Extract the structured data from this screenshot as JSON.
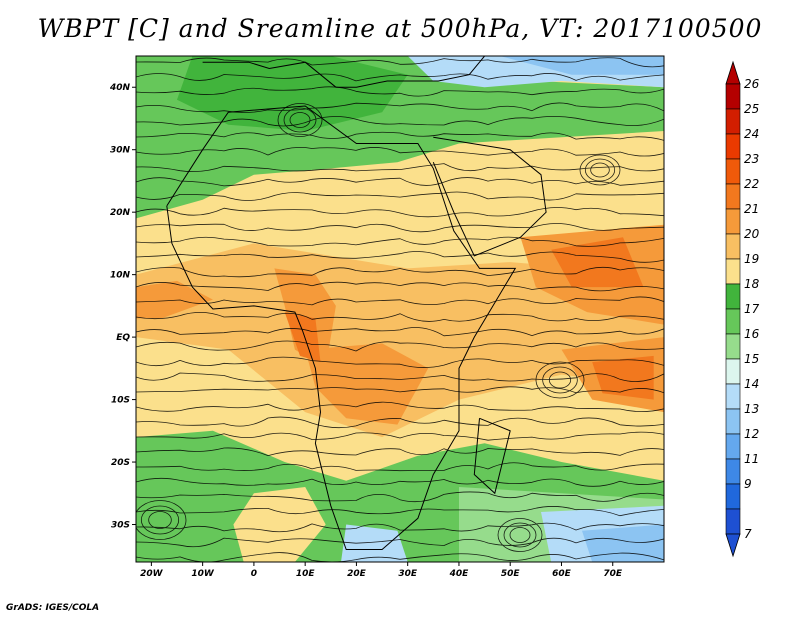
{
  "title": "WBPT [C] and Sreamline at 500hPa, VT: 2017100500",
  "credit": "GrADS: IGES/COLA",
  "map": {
    "lon_range": [
      -23,
      80
    ],
    "lat_range": [
      -36,
      45
    ],
    "lon_ticks": [
      {
        "label": "20W",
        "lon": -20
      },
      {
        "label": "10W",
        "lon": -10
      },
      {
        "label": "0",
        "lon": 0
      },
      {
        "label": "10E",
        "lon": 10
      },
      {
        "label": "20E",
        "lon": 20
      },
      {
        "label": "30E",
        "lon": 30
      },
      {
        "label": "40E",
        "lon": 40
      },
      {
        "label": "50E",
        "lon": 50
      },
      {
        "label": "60E",
        "lon": 60
      },
      {
        "label": "70E",
        "lon": 70
      }
    ],
    "lat_ticks": [
      {
        "label": "40N",
        "lat": 40
      },
      {
        "label": "30N",
        "lat": 30
      },
      {
        "label": "20N",
        "lat": 20
      },
      {
        "label": "10N",
        "lat": 10
      },
      {
        "label": "EQ",
        "lat": 0
      },
      {
        "label": "10S",
        "lat": -10
      },
      {
        "label": "20S",
        "lat": -20
      },
      {
        "label": "30S",
        "lat": -30
      }
    ]
  },
  "colorbar": {
    "labels": [
      "26",
      "25",
      "24",
      "23",
      "22",
      "21",
      "20",
      "19",
      "18",
      "17",
      "16",
      "15",
      "14",
      "13",
      "12",
      "11",
      "9",
      "7"
    ],
    "colors": [
      "#b40000",
      "#d21e00",
      "#ea3a00",
      "#f05a0a",
      "#f2781e",
      "#f59a3a",
      "#f8bf62",
      "#fbe08c",
      "#41b43c",
      "#66c75a",
      "#96dc8c",
      "#dcf6ee",
      "#b4dcf8",
      "#8cc4f2",
      "#64a8ee",
      "#3e88e6",
      "#2068dc",
      "#1e50d2"
    ]
  },
  "field": {
    "background": "#fbe08c",
    "regions": [
      {
        "name": "north-green",
        "color": "#66c75a",
        "points": [
          [
            -23,
            45
          ],
          [
            30,
            45
          ],
          [
            55,
            41
          ],
          [
            80,
            40
          ],
          [
            80,
            33
          ],
          [
            60,
            32
          ],
          [
            40,
            31
          ],
          [
            28,
            28
          ],
          [
            15,
            27
          ],
          [
            0,
            26
          ],
          [
            -10,
            22
          ],
          [
            -23,
            19
          ]
        ]
      },
      {
        "name": "north-dark-green",
        "color": "#41b43c",
        "points": [
          [
            -12,
            45
          ],
          [
            15,
            45
          ],
          [
            30,
            42
          ],
          [
            25,
            36
          ],
          [
            10,
            33
          ],
          [
            -5,
            34
          ],
          [
            -15,
            38
          ]
        ]
      },
      {
        "name": "north-blue",
        "color": "#b4dcf8",
        "points": [
          [
            30,
            45
          ],
          [
            80,
            45
          ],
          [
            80,
            40
          ],
          [
            60,
            41
          ],
          [
            45,
            40
          ],
          [
            35,
            41
          ]
        ]
      },
      {
        "name": "north-blue-core",
        "color": "#8cc4f2",
        "points": [
          [
            48,
            45
          ],
          [
            80,
            45
          ],
          [
            80,
            42
          ],
          [
            62,
            42
          ]
        ]
      },
      {
        "name": "south-green",
        "color": "#66c75a",
        "points": [
          [
            -23,
            -16
          ],
          [
            -8,
            -15
          ],
          [
            6,
            -20
          ],
          [
            18,
            -23
          ],
          [
            32,
            -19
          ],
          [
            45,
            -17
          ],
          [
            60,
            -20
          ],
          [
            80,
            -23
          ],
          [
            80,
            -36
          ],
          [
            -23,
            -36
          ]
        ]
      },
      {
        "name": "south-light-green",
        "color": "#96dc8c",
        "points": [
          [
            40,
            -24
          ],
          [
            80,
            -26
          ],
          [
            80,
            -36
          ],
          [
            40,
            -36
          ]
        ]
      },
      {
        "name": "south-blue",
        "color": "#b4dcf8",
        "points": [
          [
            56,
            -28
          ],
          [
            80,
            -27
          ],
          [
            80,
            -36
          ],
          [
            58,
            -36
          ]
        ]
      },
      {
        "name": "south-blue-core",
        "color": "#8cc4f2",
        "points": [
          [
            64,
            -31
          ],
          [
            80,
            -30
          ],
          [
            80,
            -36
          ],
          [
            66,
            -36
          ]
        ]
      },
      {
        "name": "cape-blue",
        "color": "#b4dcf8",
        "points": [
          [
            18,
            -30
          ],
          [
            28,
            -31
          ],
          [
            30,
            -36
          ],
          [
            17,
            -36
          ]
        ]
      },
      {
        "name": "south-center-yellow",
        "color": "#fbe08c",
        "points": [
          [
            0,
            -25
          ],
          [
            10,
            -24
          ],
          [
            14,
            -30
          ],
          [
            8,
            -36
          ],
          [
            -2,
            -36
          ],
          [
            -4,
            -30
          ]
        ]
      },
      {
        "name": "sahel-light-orange",
        "color": "#f8bf62",
        "points": [
          [
            -23,
            10
          ],
          [
            0,
            15
          ],
          [
            15,
            13
          ],
          [
            30,
            11
          ],
          [
            50,
            12
          ],
          [
            80,
            10
          ],
          [
            80,
            -8
          ],
          [
            60,
            -6
          ],
          [
            40,
            -10
          ],
          [
            25,
            -16
          ],
          [
            10,
            -12
          ],
          [
            -5,
            -2
          ],
          [
            -23,
            0
          ]
        ]
      },
      {
        "name": "orange-west",
        "color": "#f59a3a",
        "points": [
          [
            -23,
            8
          ],
          [
            -15,
            9
          ],
          [
            -8,
            6
          ],
          [
            -18,
            3
          ],
          [
            -23,
            3
          ]
        ]
      },
      {
        "name": "orange-gulf",
        "color": "#f59a3a",
        "points": [
          [
            4,
            11
          ],
          [
            12,
            10
          ],
          [
            16,
            5
          ],
          [
            14,
            -5
          ],
          [
            8,
            -2
          ],
          [
            6,
            5
          ]
        ]
      },
      {
        "name": "orange-congo",
        "color": "#f59a3a",
        "points": [
          [
            10,
            -2
          ],
          [
            25,
            -1
          ],
          [
            34,
            -5
          ],
          [
            28,
            -14
          ],
          [
            18,
            -13
          ],
          [
            12,
            -8
          ]
        ]
      },
      {
        "name": "orange-arabia",
        "color": "#f59a3a",
        "points": [
          [
            52,
            16
          ],
          [
            80,
            18
          ],
          [
            80,
            2
          ],
          [
            65,
            4
          ],
          [
            55,
            8
          ]
        ]
      },
      {
        "name": "orange-indian",
        "color": "#f59a3a",
        "points": [
          [
            60,
            -2
          ],
          [
            80,
            0
          ],
          [
            80,
            -12
          ],
          [
            66,
            -10
          ]
        ]
      },
      {
        "name": "deep-orange-1",
        "color": "#f2781e",
        "points": [
          [
            6,
            4
          ],
          [
            12,
            3
          ],
          [
            13,
            -4
          ],
          [
            9,
            -3
          ]
        ]
      },
      {
        "name": "deep-orange-2",
        "color": "#f2781e",
        "points": [
          [
            58,
            14
          ],
          [
            72,
            16
          ],
          [
            76,
            8
          ],
          [
            62,
            8
          ]
        ]
      },
      {
        "name": "deep-orange-3",
        "color": "#f2781e",
        "points": [
          [
            66,
            -4
          ],
          [
            78,
            -3
          ],
          [
            78,
            -10
          ],
          [
            68,
            -9
          ]
        ]
      }
    ]
  }
}
